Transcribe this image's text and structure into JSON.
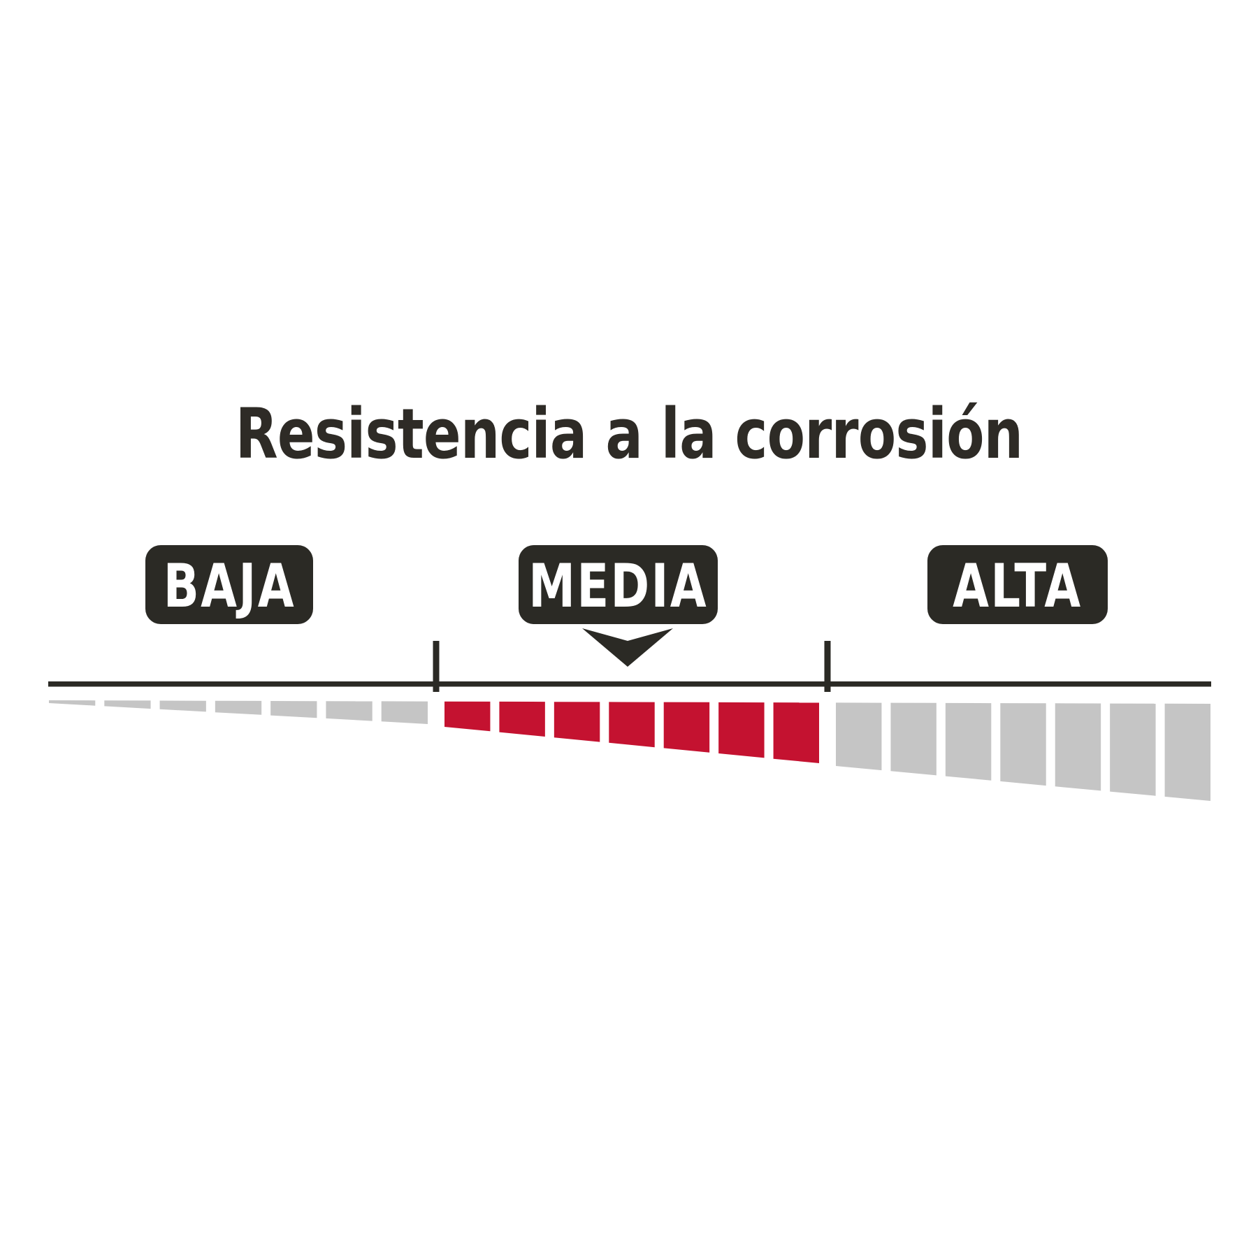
{
  "title": "Resistencia a la corrosión",
  "scale": {
    "selected_level": "MEDIA",
    "indicator_icon": "down-arrow-icon",
    "levels": [
      {
        "label": "BAJA",
        "selected": false,
        "segments": 7,
        "segment_color": "#c5c5c5"
      },
      {
        "label": "MEDIA",
        "selected": true,
        "segments": 7,
        "segment_color": "#c41230"
      },
      {
        "label": "ALTA",
        "selected": false,
        "segments": 7,
        "segment_color": "#c5c5c5"
      }
    ],
    "colors": {
      "active_segment": "#c41230",
      "inactive_segment": "#c5c5c5",
      "dark": "#2b2a25",
      "badge_text": "#ffffff",
      "background": "#ffffff"
    }
  }
}
